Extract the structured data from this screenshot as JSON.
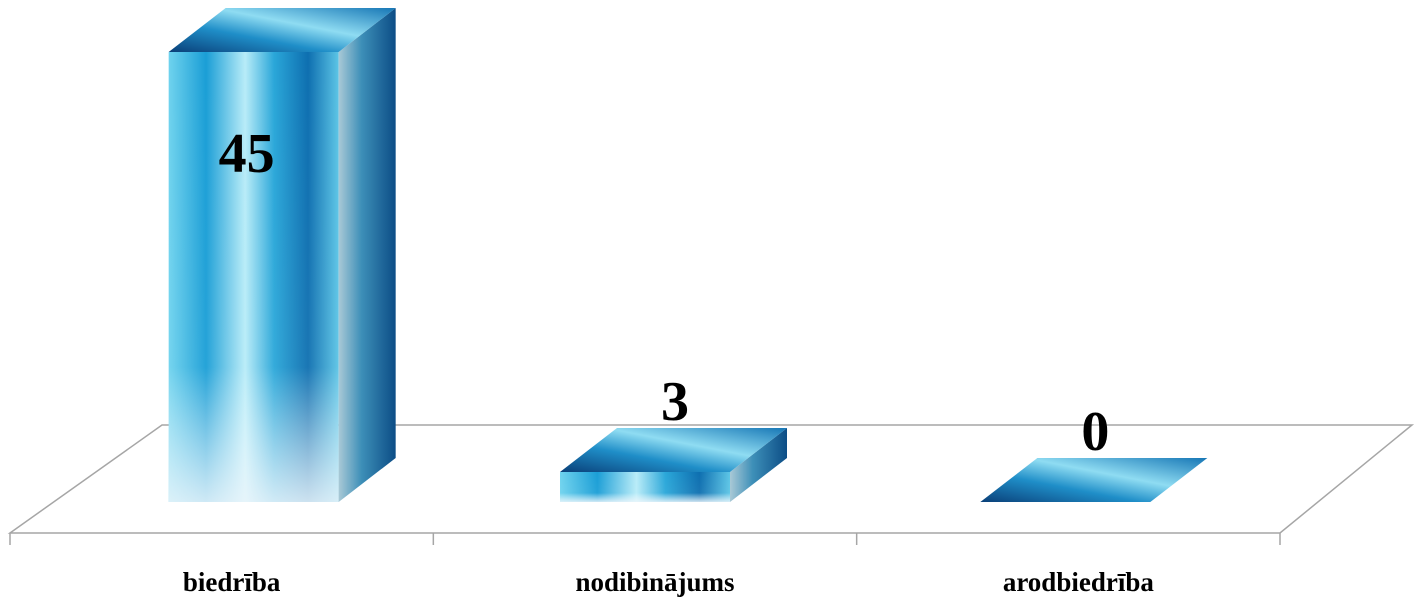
{
  "chart_data": {
    "type": "bar",
    "style": "3d-column",
    "categories": [
      "biedrība",
      "nodibinājums",
      "arodbiedrība"
    ],
    "values": [
      45,
      3,
      0
    ],
    "data_labels": [
      "45",
      "3",
      "0"
    ],
    "title": "",
    "xlabel": "",
    "ylabel": "",
    "ylim": [
      0,
      45
    ],
    "grid": false,
    "legend": "none",
    "colors": {
      "bar_light": "#dff4fb",
      "bar_mid": "#3fbde0",
      "bar_dark": "#0e5f9a",
      "bar_deep": "#0a3f78",
      "floor_line": "#a6a6a6"
    }
  }
}
